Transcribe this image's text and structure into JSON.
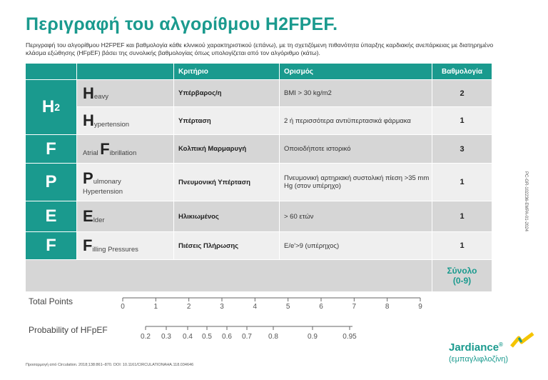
{
  "title": "Περιγραφή του αλγορίθμου H2FPEF.",
  "description": "Περιγραφή του αλγορίθμου H2FPEF και βαθμολογία κάθε κλινικού χαρακτηριστικού (επάνω), με τη σχετιζόμενη πιθανότητα ύπαρξης καρδιακής ανεπάρκειας με διατηρημένο κλάσμα εξώθησης (HFpEF) βάσει της συνολικής βαθμολογίας όπως υπολογίζεται από τον αλγόριθμο (κάτω).",
  "table": {
    "headers": [
      "",
      "",
      "Κριτήριο",
      "Ορισμός",
      "Βαθμολογία"
    ],
    "groups": [
      {
        "letter": "H",
        "sub": "2",
        "rows": [
          {
            "initial": "H",
            "label": "eavy",
            "criterion": "Υπέρβαρος/η",
            "definition": "BMI > 30 kg/m2",
            "score": "2"
          },
          {
            "initial": "H",
            "label": "ypertension",
            "criterion": "Υπέρταση",
            "definition": "2 ή περισσότερα αντιϋπερτασικά φάρμακα",
            "score": "1"
          }
        ]
      },
      {
        "letter": "F",
        "sub": "",
        "rows": [
          {
            "prefix": "Atrial ",
            "initial": "F",
            "label": "ibrillation",
            "criterion": "Κολπική Μαρμαρυγή",
            "definition": "Οποιοδήποτε ιστορικό",
            "score": "3"
          }
        ]
      },
      {
        "letter": "P",
        "sub": "",
        "rows": [
          {
            "initial": "P",
            "label": "ulmonary",
            "label2": "Hypertension",
            "criterion": "Πνευμονική Υπέρταση",
            "definition": "Πνευμονική αρτηριακή συστολική πίεση >35 mm Hg (στον υπέρηχο)",
            "score": "1"
          }
        ]
      },
      {
        "letter": "E",
        "sub": "",
        "rows": [
          {
            "initial": "E",
            "label": "lder",
            "criterion": "Ηλικιωμένος",
            "definition": "> 60 ετών",
            "score": "1"
          }
        ]
      },
      {
        "letter": "F",
        "sub": "",
        "rows": [
          {
            "initial": "F",
            "label": "illing Pressures",
            "criterion": "Πιέσεις Πλήρωσης",
            "definition": "E/e'>9 (υπέρηχος)",
            "score": "1"
          }
        ]
      }
    ],
    "total_label": "Σύνολο",
    "total_range": "(0-9)"
  },
  "scales": {
    "total_points_label": "Total Points",
    "total_points_ticks": [
      "0",
      "1",
      "2",
      "3",
      "4",
      "5",
      "6",
      "7",
      "8",
      "9"
    ],
    "probability_label": "Probability of HFpEF",
    "probability_ticks": [
      "0.2",
      "0.3",
      "0.4",
      "0.5",
      "0.6",
      "0.7",
      "0.8",
      "0.9",
      "0.95"
    ]
  },
  "footer": "Προσαρμογή από Circulation. 2018;138:861–870. DOI: 10.1161/CIRCULATIONAHA.118.034646",
  "side_code": "PC-GR-102236-EMPA-01-2024",
  "brand": {
    "name": "Jardiance",
    "generic": "(εμπαγλιφλοζίνη)",
    "color": "#1a9a8e"
  }
}
